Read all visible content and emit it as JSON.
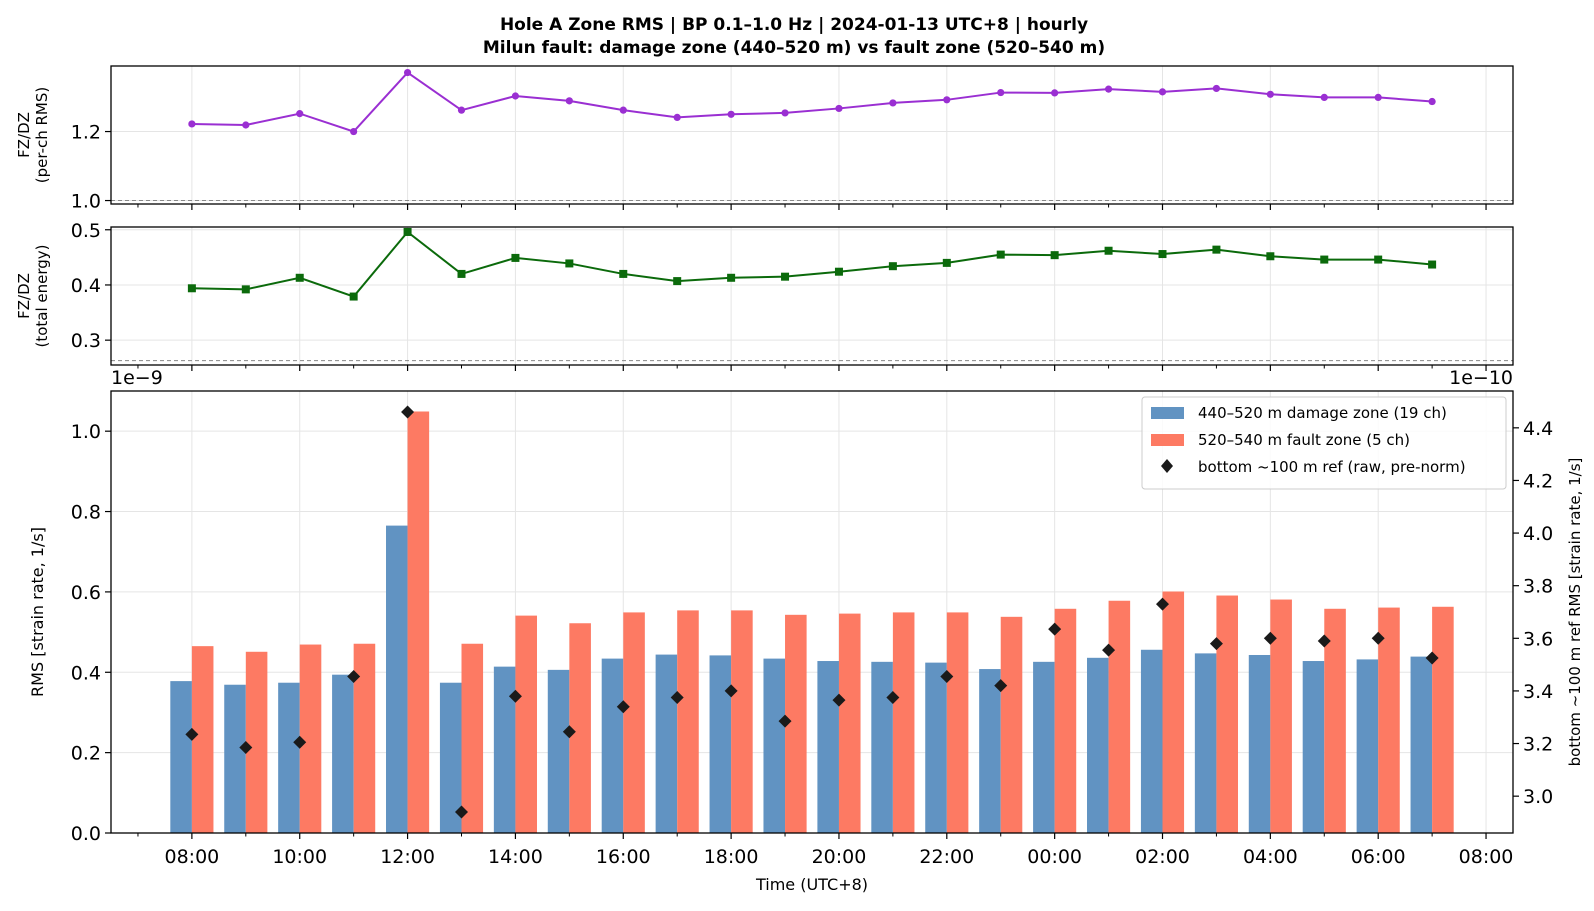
{
  "chart_data": [
    {
      "type": "line",
      "panel": "ratio_rms",
      "title": "Hole A Zone RMS  |  BP 0.1–1.0 Hz  |  2024-01-13 UTC+8  |  hourly",
      "subtitle": "Milun fault: damage zone (440–520 m) vs fault zone (520–540 m)",
      "ylabel_line1": "FZ/DZ",
      "ylabel_line2": "(per-ch RMS)",
      "ylim": [
        0.99,
        1.39
      ],
      "yticks": [
        "1.0",
        "1.2"
      ],
      "yticks_values": [
        1.0,
        1.2
      ],
      "reference_line": 1.0,
      "grid": true,
      "color": "#9a2fd2",
      "marker": "circle",
      "x": [
        0,
        1,
        2,
        3,
        4,
        5,
        6,
        7,
        8,
        9,
        10,
        11,
        12,
        13,
        14,
        15,
        16,
        17,
        18,
        19,
        20,
        21,
        22,
        23
      ],
      "values": [
        1.222,
        1.219,
        1.252,
        1.2,
        1.371,
        1.262,
        1.303,
        1.289,
        1.262,
        1.241,
        1.25,
        1.254,
        1.267,
        1.283,
        1.292,
        1.313,
        1.312,
        1.323,
        1.315,
        1.325,
        1.308,
        1.299,
        1.299,
        1.287
      ]
    },
    {
      "type": "line",
      "panel": "ratio_energy",
      "ylabel_line1": "FZ/DZ",
      "ylabel_line2": "(total energy)",
      "ylim": [
        0.255,
        0.505
      ],
      "yticks": [
        "0.3",
        "0.4",
        "0.5"
      ],
      "yticks_values": [
        0.3,
        0.4,
        0.5
      ],
      "reference_line": 0.263,
      "grid": true,
      "color": "#0b6a0b",
      "marker": "square",
      "left_offset_label": "1e−9",
      "right_offset_label": "1e−10",
      "x": [
        0,
        1,
        2,
        3,
        4,
        5,
        6,
        7,
        8,
        9,
        10,
        11,
        12,
        13,
        14,
        15,
        16,
        17,
        18,
        19,
        20,
        21,
        22,
        23
      ],
      "values": [
        0.394,
        0.392,
        0.413,
        0.379,
        0.496,
        0.42,
        0.449,
        0.439,
        0.42,
        0.407,
        0.413,
        0.415,
        0.424,
        0.434,
        0.44,
        0.455,
        0.454,
        0.462,
        0.456,
        0.464,
        0.452,
        0.446,
        0.446,
        0.437
      ]
    },
    {
      "type": "bar",
      "panel": "rms",
      "ylabel": "RMS  [strain rate, 1/s]",
      "y2label": "bottom ~100 m ref RMS  [strain rate, 1/s]",
      "xlabel": "Time (UTC+8)",
      "ylim": [
        0,
        1.1
      ],
      "yticks": [
        "0.0",
        "0.2",
        "0.4",
        "0.6",
        "0.8",
        "1.0"
      ],
      "yticks_values": [
        0.0,
        0.2,
        0.4,
        0.6,
        0.8,
        1.0
      ],
      "y2lim": [
        2.86,
        4.54
      ],
      "y2ticks": [
        "3.0",
        "3.2",
        "3.4",
        "3.6",
        "3.8",
        "4.0",
        "4.2",
        "4.4"
      ],
      "y2ticks_values": [
        3.0,
        3.2,
        3.4,
        3.6,
        3.8,
        4.0,
        4.2,
        4.4
      ],
      "xlim": [
        -1.5,
        24.5
      ],
      "xticks_values": [
        0,
        2,
        4,
        6,
        8,
        10,
        12,
        14,
        16,
        18,
        20,
        22,
        24
      ],
      "xtick_labels": [
        "08:00",
        "10:00",
        "12:00",
        "14:00",
        "16:00",
        "18:00",
        "20:00",
        "22:00",
        "00:00",
        "02:00",
        "04:00",
        "06:00",
        "08:00"
      ],
      "grid": true,
      "legend_position": "top-right",
      "series": [
        {
          "name": "440–520 m  damage zone (19 ch)",
          "color": "#6193c2",
          "axis": "left",
          "values": [
            0.378,
            0.369,
            0.374,
            0.394,
            0.765,
            0.374,
            0.414,
            0.406,
            0.434,
            0.444,
            0.442,
            0.434,
            0.428,
            0.426,
            0.424,
            0.408,
            0.426,
            0.436,
            0.456,
            0.447,
            0.443,
            0.428,
            0.432,
            0.439
          ]
        },
        {
          "name": "520–540 m  fault zone (5 ch)",
          "color": "#fd7a63",
          "axis": "left",
          "values": [
            0.465,
            0.451,
            0.469,
            0.471,
            1.049,
            0.471,
            0.541,
            0.522,
            0.549,
            0.554,
            0.554,
            0.543,
            0.546,
            0.549,
            0.549,
            0.538,
            0.558,
            0.578,
            0.601,
            0.591,
            0.581,
            0.558,
            0.561,
            0.563
          ]
        },
        {
          "name": "bottom ~100 m ref (raw, pre-norm)",
          "color": "#1a1a1a",
          "axis": "right",
          "marker": "diamond",
          "values": [
            3.235,
            3.185,
            3.205,
            3.455,
            4.46,
            2.94,
            3.38,
            3.245,
            3.34,
            3.375,
            3.4,
            3.285,
            3.365,
            3.375,
            3.455,
            3.42,
            3.635,
            3.555,
            3.73,
            3.58,
            3.6,
            3.59,
            3.6,
            3.525
          ]
        }
      ]
    }
  ]
}
